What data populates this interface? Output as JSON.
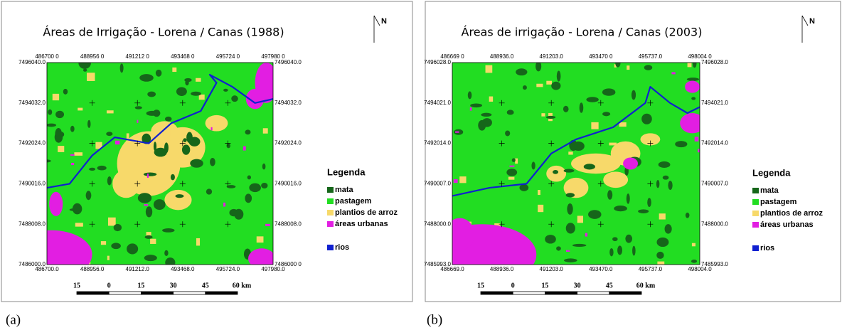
{
  "panels": [
    {
      "title": "Áreas de Irrigação - Lorena / Canas (1988)",
      "north": "N",
      "top_coords": [
        "486700 0",
        "488956 0",
        "491212 0",
        "493468 0",
        "495724 0",
        "497980 0"
      ],
      "bottom_coords": [
        "486700.0",
        "488956.0",
        "491212.0",
        "493468.0",
        "495724.0",
        "497980.0"
      ],
      "left_coords": [
        "7496040.0",
        "7494032.0",
        "7492024.0",
        "7490016.0",
        "7488008.0",
        "7486000.0"
      ],
      "right_coords": [
        "7496040.0",
        "7494032.0",
        "7492024.0",
        "7490016.0",
        "7488008.0",
        "7486000 0"
      ],
      "legend_title": "Legenda",
      "legend": [
        {
          "label": "mata",
          "color": "#16661a"
        },
        {
          "label": "pastagem",
          "color": "#22dd22"
        },
        {
          "label": "plantios de arroz",
          "color": "#f7d96a"
        },
        {
          "label": "áreas urbanas",
          "color": "#e21ee2"
        },
        {
          "label": "rios",
          "color": "#1020d0"
        }
      ],
      "scale_labels": [
        "15",
        "0",
        "15",
        "30",
        "45",
        "60 km"
      ],
      "caption": "(a)"
    },
    {
      "title": "Áreas de irrigação - Lorena / Canas (2003)",
      "north": "N",
      "top_coords": [
        "486669 0",
        "488936.0",
        "491203.0",
        "493470 0",
        "495737.0",
        "498004 0"
      ],
      "bottom_coords": [
        "486669.0",
        "488936.0",
        "491203.0",
        "493470.0",
        "495737.0",
        "498004.0"
      ],
      "left_coords": [
        "7496028.0",
        "7494021.0",
        "7492014.0",
        "7490007.0",
        "7488000.0",
        "7485993.0"
      ],
      "right_coords": [
        "7496028.0",
        "7494021.0",
        "7492014.0",
        "7490007.0",
        "7488000.0",
        "7485993.0"
      ],
      "legend_title": "Legenda",
      "legend": [
        {
          "label": "mata",
          "color": "#16661a"
        },
        {
          "label": "pastagem",
          "color": "#22dd22"
        },
        {
          "label": "plantios de arroz",
          "color": "#f7d96a"
        },
        {
          "label": "áreas urbanas",
          "color": "#e21ee2"
        },
        {
          "label": "rios",
          "color": "#1020d0"
        }
      ],
      "scale_labels": [
        "15",
        "0",
        "15",
        "30",
        "45",
        "60 km"
      ],
      "caption": "(b)"
    }
  ]
}
